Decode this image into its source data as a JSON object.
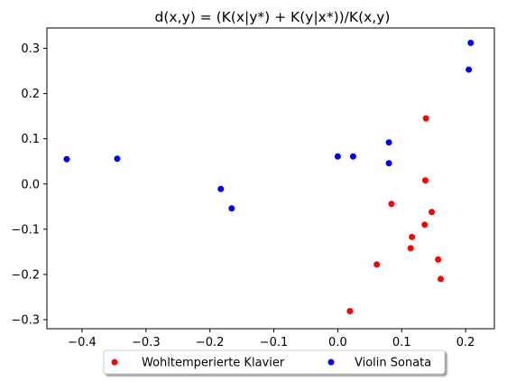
{
  "chart_data": {
    "type": "scatter",
    "title": "d(x,y) = (K(x|y*) + K(y|x*))/K(x,y)",
    "xlabel": "",
    "ylabel": "",
    "xlim": [
      -0.455,
      0.245
    ],
    "ylim": [
      -0.32,
      0.345
    ],
    "xticks": [
      -0.4,
      -0.3,
      -0.2,
      -0.1,
      0.0,
      0.1,
      0.2
    ],
    "yticks": [
      -0.3,
      -0.2,
      -0.1,
      0.0,
      0.1,
      0.2,
      0.3
    ],
    "xtick_labels": [
      "−0.4",
      "−0.3",
      "−0.2",
      "−0.1",
      "0.0",
      "0.1",
      "0.2"
    ],
    "ytick_labels": [
      "−0.3",
      "−0.2",
      "−0.1",
      "0.0",
      "0.1",
      "0.2",
      "0.3"
    ],
    "grid": false,
    "legend_position": "bottom-center",
    "series": [
      {
        "name": "Wohltemperierte Klavier",
        "color": "#ff0000",
        "points": [
          [
            0.138,
            0.145
          ],
          [
            0.137,
            0.008
          ],
          [
            0.084,
            -0.044
          ],
          [
            0.147,
            -0.062
          ],
          [
            0.136,
            -0.09
          ],
          [
            0.116,
            -0.117
          ],
          [
            0.114,
            -0.142
          ],
          [
            0.157,
            -0.167
          ],
          [
            0.061,
            -0.178
          ],
          [
            0.161,
            -0.21
          ],
          [
            0.019,
            -0.281
          ]
        ]
      },
      {
        "name": "Violin Sonata",
        "color": "#0000ff",
        "points": [
          [
            0.208,
            0.312
          ],
          [
            0.205,
            0.253
          ],
          [
            0.08,
            0.092
          ],
          [
            0.0,
            0.061
          ],
          [
            0.024,
            0.061
          ],
          [
            0.08,
            0.046
          ],
          [
            -0.424,
            0.055
          ],
          [
            -0.345,
            0.056
          ],
          [
            -0.183,
            -0.011
          ],
          [
            -0.166,
            -0.054
          ]
        ]
      }
    ]
  }
}
